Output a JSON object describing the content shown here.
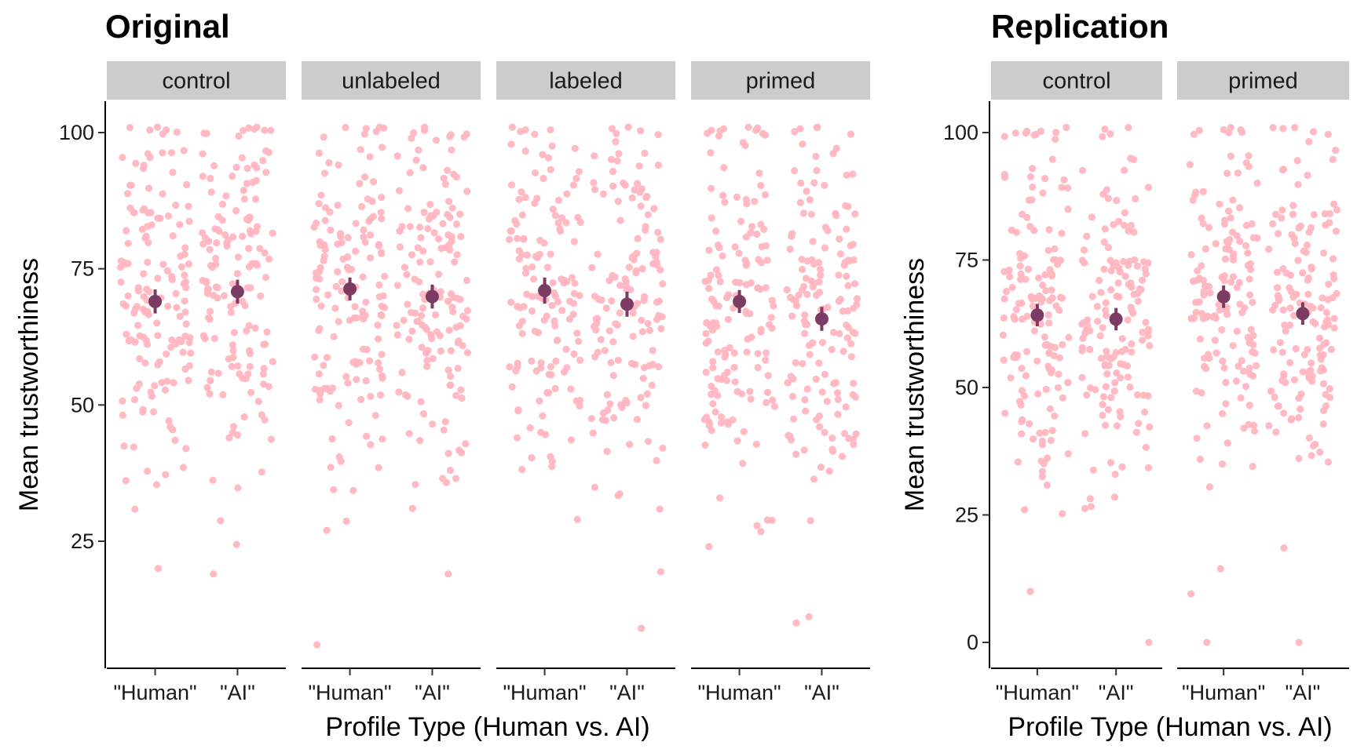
{
  "chart_data": [
    {
      "type": "scatter",
      "title": "Original",
      "xlabel": "Profile Type (Human vs. AI)",
      "ylabel": "Mean trustworthiness",
      "ylim": [
        4,
        106
      ],
      "yticks": [
        25,
        50,
        75,
        100
      ],
      "categories": [
        "\"Human\"",
        "\"AI\""
      ],
      "grid": false,
      "legend": "none",
      "point_color": "#ffb6c1",
      "mean_color": "#7b3b63",
      "strip_color": "#cccccc",
      "panels": [
        {
          "label": "control",
          "means": [
            69.0,
            70.8
          ],
          "ci": [
            [
              66.8,
              71.2
            ],
            [
              68.6,
              73.0
            ]
          ],
          "clouds": [
            {
              "n": 150,
              "min": 20,
              "max": 101
            },
            {
              "n": 150,
              "min": 19,
              "max": 101
            }
          ]
        },
        {
          "label": "unlabeled",
          "means": [
            71.3,
            69.9
          ],
          "ci": [
            [
              69.2,
              73.4
            ],
            [
              67.7,
              72.1
            ]
          ],
          "clouds": [
            {
              "n": 150,
              "min": 6,
              "max": 101
            },
            {
              "n": 150,
              "min": 19,
              "max": 101
            }
          ]
        },
        {
          "label": "labeled",
          "means": [
            71.0,
            68.5
          ],
          "ci": [
            [
              68.6,
              73.4
            ],
            [
              66.2,
              70.8
            ]
          ],
          "clouds": [
            {
              "n": 140,
              "min": 29,
              "max": 101
            },
            {
              "n": 140,
              "min": 9,
              "max": 101
            }
          ]
        },
        {
          "label": "primed",
          "means": [
            69.0,
            65.8
          ],
          "ci": [
            [
              66.9,
              71.1
            ],
            [
              63.6,
              68.0
            ]
          ],
          "clouds": [
            {
              "n": 150,
              "min": 24,
              "max": 101
            },
            {
              "n": 150,
              "min": 10,
              "max": 101
            }
          ]
        }
      ]
    },
    {
      "type": "scatter",
      "title": "Replication",
      "xlabel": "Profile Type (Human vs. AI)",
      "ylabel": "Mean trustworthiness",
      "ylim": [
        -3,
        105
      ],
      "yticks": [
        0,
        25,
        50,
        75,
        100
      ],
      "categories": [
        "\"Human\"",
        "\"AI\""
      ],
      "grid": false,
      "legend": "none",
      "point_color": "#ffb6c1",
      "mean_color": "#7b3b63",
      "strip_color": "#cccccc",
      "panels": [
        {
          "label": "control",
          "means": [
            64.2,
            63.4
          ],
          "ci": [
            [
              62.0,
              66.4
            ],
            [
              61.2,
              65.6
            ]
          ],
          "clouds": [
            {
              "n": 150,
              "min": 10,
              "max": 101
            },
            {
              "n": 150,
              "min": 0,
              "max": 101
            }
          ]
        },
        {
          "label": "primed",
          "means": [
            67.8,
            64.5
          ],
          "ci": [
            [
              65.6,
              70.0
            ],
            [
              62.3,
              66.7
            ]
          ],
          "clouds": [
            {
              "n": 150,
              "min": 0,
              "max": 101
            },
            {
              "n": 150,
              "min": 0,
              "max": 101
            }
          ]
        }
      ]
    }
  ]
}
